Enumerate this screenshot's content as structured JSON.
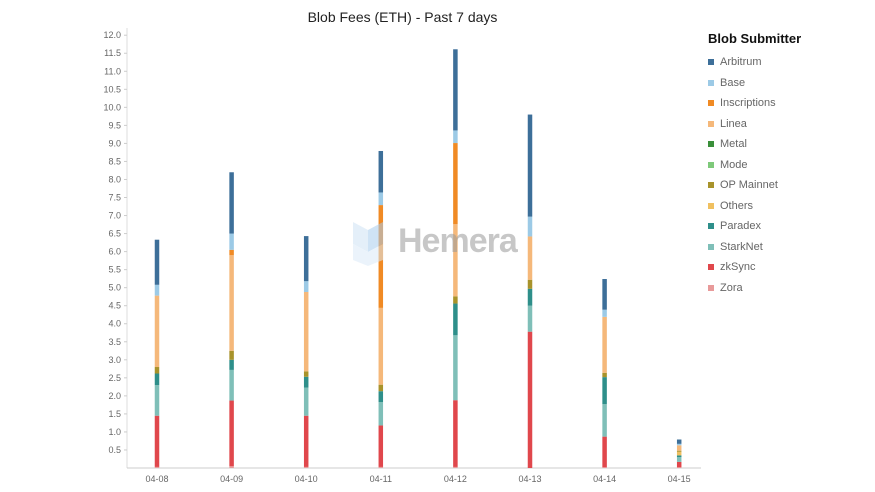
{
  "chart_data": {
    "type": "bar",
    "stacked": true,
    "title": "Blob Fees (ETH) - Past 7 days",
    "legend_title": "Blob Submitter",
    "legend_position": "right",
    "ylim": [
      0,
      12.2
    ],
    "yticks": [
      0.5,
      1.0,
      1.5,
      2.0,
      2.5,
      3.0,
      3.5,
      4.0,
      4.5,
      5.0,
      5.5,
      6.0,
      6.5,
      7.0,
      7.5,
      8.0,
      8.5,
      9.0,
      9.5,
      10.0,
      10.5,
      11.0,
      11.5,
      12.0
    ],
    "ytick_labels": [
      "0.5",
      "1.0",
      "1.5",
      "2.0",
      "2.5",
      "3.0",
      "3.5",
      "4.0",
      "4.5",
      "5.0",
      "5.5",
      "6.0",
      "6.5",
      "7.0",
      "7.5",
      "8.0",
      "8.5",
      "9.0",
      "9.5",
      "10.0",
      "10.5",
      "11.0",
      "11.5",
      "12.0"
    ],
    "categories": [
      "04-08",
      "04-09",
      "04-10",
      "04-11",
      "04-12",
      "04-13",
      "04-14",
      "04-15"
    ],
    "series": [
      {
        "name": "Zora",
        "color": "#e89a9a",
        "values": [
          0.03,
          0.05,
          0.03,
          0.03,
          0.03,
          0.0,
          0.02,
          0.02
        ]
      },
      {
        "name": "zkSync",
        "color": "#e0474c",
        "values": [
          1.42,
          1.82,
          1.42,
          1.15,
          1.85,
          3.78,
          0.85,
          0.15
        ]
      },
      {
        "name": "StarkNet",
        "color": "#7fbfb8",
        "values": [
          0.85,
          0.85,
          0.78,
          0.65,
          1.8,
          0.72,
          0.9,
          0.13
        ]
      },
      {
        "name": "Paradex",
        "color": "#2e8f8a",
        "values": [
          0.32,
          0.28,
          0.3,
          0.3,
          0.88,
          0.47,
          0.75,
          0.05
        ]
      },
      {
        "name": "Others",
        "color": "#f0c060",
        "values": [
          0.0,
          0.0,
          0.0,
          0.0,
          0.0,
          0.0,
          0.0,
          0.1
        ]
      },
      {
        "name": "OP Mainnet",
        "color": "#a8932b",
        "values": [
          0.18,
          0.25,
          0.15,
          0.18,
          0.2,
          0.25,
          0.12,
          0.03
        ]
      },
      {
        "name": "Mode",
        "color": "#7ec97a",
        "values": [
          0.0,
          0.0,
          0.0,
          0.0,
          0.0,
          0.0,
          0.0,
          0.0
        ]
      },
      {
        "name": "Metal",
        "color": "#3a8f3a",
        "values": [
          0.0,
          0.0,
          0.0,
          0.0,
          0.0,
          0.0,
          0.0,
          0.0
        ]
      },
      {
        "name": "Linea",
        "color": "#f5b87a",
        "values": [
          1.98,
          2.65,
          2.2,
          2.13,
          2.0,
          1.2,
          1.55,
          0.15
        ]
      },
      {
        "name": "Inscriptions",
        "color": "#f08a24",
        "values": [
          0.0,
          0.15,
          0.0,
          2.85,
          2.25,
          0.0,
          0.0,
          0.0
        ]
      },
      {
        "name": "Base",
        "color": "#9ccae6",
        "values": [
          0.3,
          0.45,
          0.3,
          0.35,
          0.35,
          0.55,
          0.2,
          0.04
        ]
      },
      {
        "name": "Arbitrum",
        "color": "#3d6f99",
        "values": [
          1.25,
          1.7,
          1.25,
          1.15,
          2.25,
          2.83,
          0.85,
          0.12
        ]
      }
    ],
    "legend_order": [
      "Arbitrum",
      "Base",
      "Inscriptions",
      "Linea",
      "Metal",
      "Mode",
      "OP Mainnet",
      "Others",
      "Paradex",
      "StarkNet",
      "zkSync",
      "Zora"
    ],
    "grid": false
  },
  "watermark": {
    "text": "Hemera",
    "color": "#9ccae6"
  }
}
